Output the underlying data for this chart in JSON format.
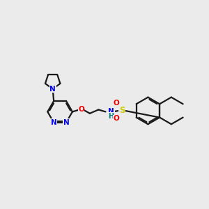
{
  "bg_color": "#ebebeb",
  "bond_color": "#1a1a1a",
  "N_color": "#0000ee",
  "O_color": "#ee0000",
  "S_color": "#cccc00",
  "NH_color": "#008080",
  "lw": 1.6,
  "figsize": [
    3.0,
    3.0
  ],
  "dpi": 100,
  "xlim": [
    0,
    10
  ],
  "ylim": [
    1,
    8
  ]
}
